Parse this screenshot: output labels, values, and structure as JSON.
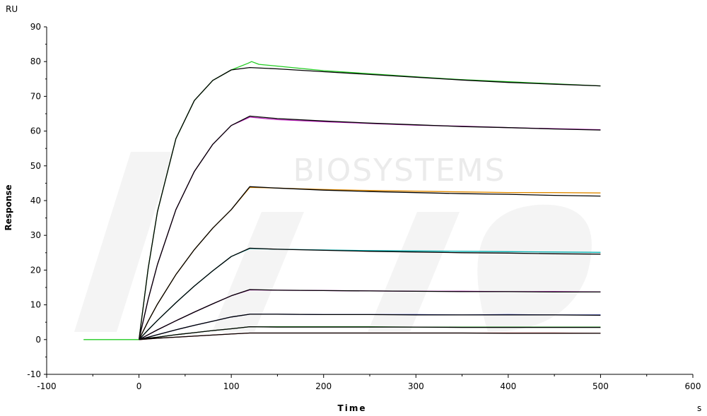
{
  "watermark": "BIOSYSTEMS",
  "chart_data": {
    "type": "line",
    "title": "",
    "xlabel": "Time",
    "ylabel": "Response",
    "x_unit": "s",
    "y_unit": "RU",
    "xlim": [
      -100,
      600
    ],
    "ylim": [
      -10,
      90
    ],
    "x_ticks": [
      -100,
      0,
      100,
      200,
      300,
      400,
      500,
      600
    ],
    "y_ticks": [
      -10,
      0,
      10,
      20,
      30,
      40,
      50,
      60,
      70,
      80,
      90
    ],
    "grid": false,
    "legend": "none",
    "series": [
      {
        "role": "measured",
        "color": "#22cc22",
        "x": [
          -60,
          0,
          10,
          20,
          40,
          60,
          80,
          100,
          118,
          122,
          130,
          150,
          200,
          250,
          300,
          350,
          400,
          450,
          500
        ],
        "y": [
          0,
          0,
          20.5,
          36.8,
          57.8,
          68.8,
          74.6,
          77.6,
          79.5,
          80,
          79.2,
          78.7,
          77.4,
          76.5,
          75.6,
          74.8,
          74.2,
          73.6,
          73
        ]
      },
      {
        "role": "fit",
        "color": "#000000",
        "x": [
          0,
          10,
          20,
          40,
          60,
          80,
          100,
          120,
          150,
          200,
          250,
          300,
          350,
          400,
          450,
          500
        ],
        "y": [
          0,
          20.5,
          36.8,
          57.8,
          68.8,
          74.6,
          77.6,
          78.3,
          77.9,
          77.1,
          76.3,
          75.5,
          74.7,
          74,
          73.5,
          73
        ]
      },
      {
        "role": "measured",
        "color": "#bb22bb",
        "x": [
          0,
          10,
          20,
          40,
          60,
          80,
          100,
          120,
          150,
          200,
          250,
          300,
          350,
          400,
          450,
          500
        ],
        "y": [
          0,
          11.6,
          21.6,
          37.4,
          48.4,
          56.2,
          61.6,
          64,
          63.3,
          62.7,
          62.2,
          61.7,
          61.4,
          61,
          60.7,
          60.4
        ]
      },
      {
        "role": "fit",
        "color": "#000000",
        "x": [
          0,
          10,
          20,
          40,
          60,
          80,
          100,
          120,
          150,
          200,
          250,
          300,
          350,
          400,
          450,
          500
        ],
        "y": [
          0,
          11.6,
          21.6,
          37.4,
          48.4,
          56.2,
          61.6,
          64.3,
          63.6,
          62.9,
          62.3,
          61.8,
          61.3,
          61,
          60.6,
          60.3
        ]
      },
      {
        "role": "measured",
        "color": "#e08a00",
        "x": [
          0,
          10,
          20,
          40,
          60,
          80,
          100,
          120,
          150,
          200,
          250,
          300,
          350,
          400,
          450,
          500
        ],
        "y": [
          0,
          5.3,
          10.2,
          18.7,
          25.9,
          32.1,
          37.4,
          43.8,
          43.6,
          43.2,
          42.9,
          42.7,
          42.5,
          42.3,
          42.3,
          42.2
        ]
      },
      {
        "role": "fit",
        "color": "#000000",
        "x": [
          0,
          10,
          20,
          40,
          60,
          80,
          100,
          120,
          150,
          200,
          250,
          300,
          350,
          400,
          450,
          500
        ],
        "y": [
          0,
          5.3,
          10.2,
          18.7,
          25.9,
          32.1,
          37.4,
          44,
          43.6,
          43,
          42.6,
          42.3,
          42,
          41.8,
          41.5,
          41.3
        ]
      },
      {
        "role": "measured",
        "color": "#00b0b0",
        "x": [
          0,
          10,
          20,
          40,
          60,
          80,
          100,
          120,
          150,
          200,
          250,
          300,
          350,
          400,
          450,
          500
        ],
        "y": [
          0,
          2.8,
          5.5,
          10.6,
          15.4,
          19.8,
          23.9,
          26.2,
          26,
          25.8,
          25.6,
          25.5,
          25.4,
          25.3,
          25.2,
          25.1
        ]
      },
      {
        "role": "fit",
        "color": "#000000",
        "x": [
          0,
          10,
          20,
          40,
          60,
          80,
          100,
          120,
          150,
          200,
          250,
          300,
          350,
          400,
          450,
          500
        ],
        "y": [
          0,
          2.8,
          5.5,
          10.6,
          15.4,
          19.8,
          23.9,
          26.3,
          26,
          25.7,
          25.4,
          25.2,
          25,
          24.9,
          24.7,
          24.6
        ]
      },
      {
        "role": "measured",
        "color": "#b000b0",
        "x": [
          0,
          10,
          20,
          40,
          60,
          80,
          100,
          120,
          150,
          200,
          250,
          300,
          350,
          400,
          450,
          500
        ],
        "y": [
          0,
          1.4,
          2.8,
          5.4,
          7.9,
          10.3,
          12.6,
          14.3,
          14.2,
          14.1,
          14,
          13.9,
          13.9,
          13.8,
          13.8,
          13.7
        ]
      },
      {
        "role": "fit",
        "color": "#000000",
        "x": [
          0,
          10,
          20,
          40,
          60,
          80,
          100,
          120,
          150,
          200,
          250,
          300,
          350,
          400,
          450,
          500
        ],
        "y": [
          0,
          1.4,
          2.8,
          5.4,
          7.9,
          10.3,
          12.6,
          14.4,
          14.2,
          14.1,
          14,
          13.9,
          13.8,
          13.8,
          13.7,
          13.7
        ]
      },
      {
        "role": "measured",
        "color": "#2233bb",
        "x": [
          0,
          10,
          20,
          40,
          60,
          80,
          100,
          120,
          150,
          200,
          250,
          300,
          350,
          400,
          450,
          500
        ],
        "y": [
          0,
          0.7,
          1.4,
          2.8,
          4.1,
          5.3,
          6.5,
          7.3,
          7.3,
          7.2,
          7.2,
          7.2,
          7.1,
          7.2,
          7.1,
          7.1
        ]
      },
      {
        "role": "fit",
        "color": "#000000",
        "x": [
          0,
          10,
          20,
          40,
          60,
          80,
          100,
          120,
          150,
          200,
          250,
          300,
          350,
          400,
          450,
          500
        ],
        "y": [
          0,
          0.7,
          1.4,
          2.8,
          4.1,
          5.3,
          6.5,
          7.3,
          7.3,
          7.2,
          7.2,
          7.1,
          7.1,
          7.1,
          7.1,
          7
        ]
      },
      {
        "role": "measured",
        "color": "#118811",
        "x": [
          0,
          10,
          20,
          40,
          60,
          80,
          100,
          120,
          150,
          200,
          250,
          300,
          350,
          400,
          450,
          500
        ],
        "y": [
          0,
          0.4,
          0.7,
          1.4,
          2,
          2.6,
          3.1,
          3.7,
          3.7,
          3.7,
          3.7,
          3.6,
          3.6,
          3.6,
          3.6,
          3.6
        ]
      },
      {
        "role": "fit",
        "color": "#000000",
        "x": [
          0,
          10,
          20,
          40,
          60,
          80,
          100,
          120,
          150,
          200,
          250,
          300,
          350,
          400,
          450,
          500
        ],
        "y": [
          0,
          0.4,
          0.7,
          1.4,
          2,
          2.6,
          3.1,
          3.7,
          3.6,
          3.6,
          3.6,
          3.6,
          3.5,
          3.5,
          3.5,
          3.5
        ]
      },
      {
        "role": "measured",
        "color": "#cc2222",
        "x": [
          0,
          10,
          20,
          40,
          60,
          80,
          100,
          120,
          150,
          200,
          250,
          300,
          350,
          400,
          450,
          500
        ],
        "y": [
          0,
          0.2,
          0.4,
          0.7,
          1,
          1.3,
          1.6,
          1.9,
          1.9,
          1.9,
          1.9,
          1.9,
          1.9,
          1.9,
          1.9,
          1.8
        ]
      },
      {
        "role": "fit",
        "color": "#000000",
        "x": [
          0,
          10,
          20,
          40,
          60,
          80,
          100,
          120,
          150,
          200,
          250,
          300,
          350,
          400,
          450,
          500
        ],
        "y": [
          0,
          0.2,
          0.4,
          0.7,
          1,
          1.3,
          1.6,
          1.9,
          1.9,
          1.9,
          1.9,
          1.9,
          1.9,
          1.8,
          1.8,
          1.8
        ]
      }
    ]
  }
}
